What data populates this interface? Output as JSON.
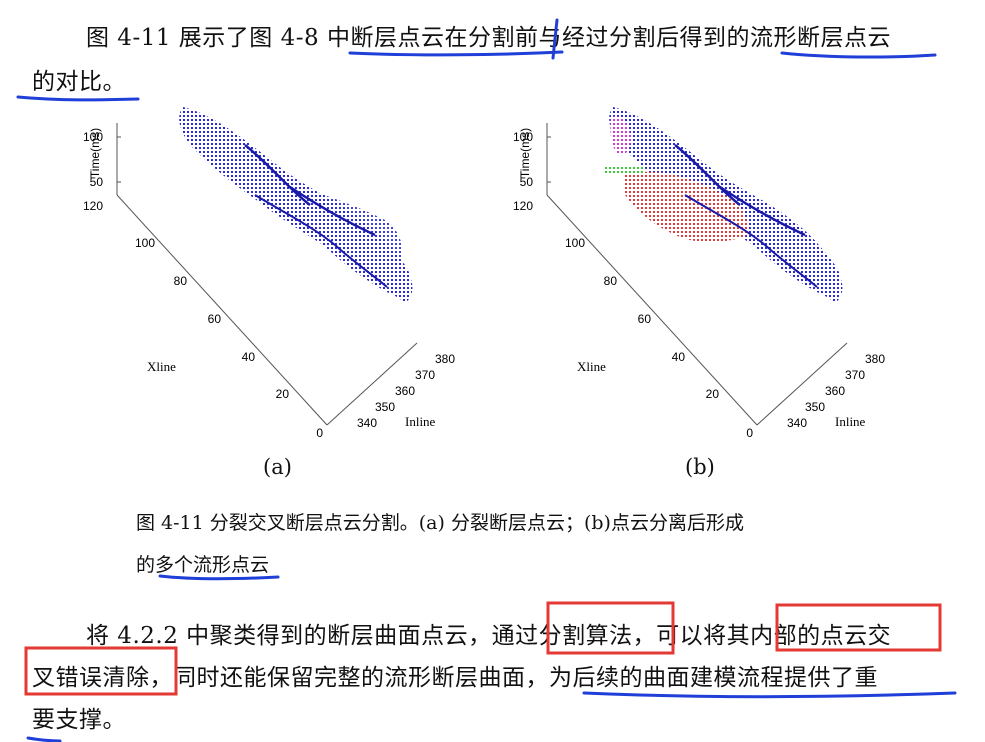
{
  "para1": {
    "line1": "图 4-11 展示了图 4-8 中断层点云在分割前与经过分割后得到的流形断层点云",
    "line2": "的对比。"
  },
  "figure": {
    "panel_a": {
      "label": "(a)",
      "z_axis_label": "Time(ms)",
      "z_ticks": [
        "100",
        "50"
      ],
      "x_axis_label": "Xline",
      "x_ticks": [
        "120",
        "100",
        "80",
        "60",
        "40",
        "20",
        "0"
      ],
      "y_axis_label": "Inline",
      "y_ticks": [
        "340",
        "350",
        "360",
        "370",
        "380"
      ]
    },
    "panel_b": {
      "label": "(b)",
      "z_axis_label": "Time(ms)",
      "z_ticks": [
        "100",
        "50"
      ],
      "x_axis_label": "Xline",
      "x_ticks": [
        "120",
        "100",
        "80",
        "60",
        "40",
        "20",
        "0"
      ],
      "y_axis_label": "Inline",
      "y_ticks": [
        "340",
        "350",
        "360",
        "370",
        "380"
      ]
    },
    "caption_line1": "图 4-11  分裂交叉断层点云分割。(a)  分裂断层点云；(b)点云分离后形成",
    "caption_line2": "的多个流形点云"
  },
  "para2": {
    "line1": "将 4.2.2 中聚类得到的断层曲面点云，通过分割算法，可以将其内部的点云交",
    "line2": "叉错误清除，同时还能保留完整的流形断层曲面，为后续的曲面建模流程提供了重",
    "line3": "要支撑。"
  },
  "colors": {
    "cloud_blue": "#2b2bd6",
    "cloud_red": "#e03a3a",
    "cloud_magenta": "#d63ad6",
    "cloud_green": "#3acb3a",
    "annotation_blue": "#1f3fd8",
    "annotation_red": "#e53935"
  }
}
